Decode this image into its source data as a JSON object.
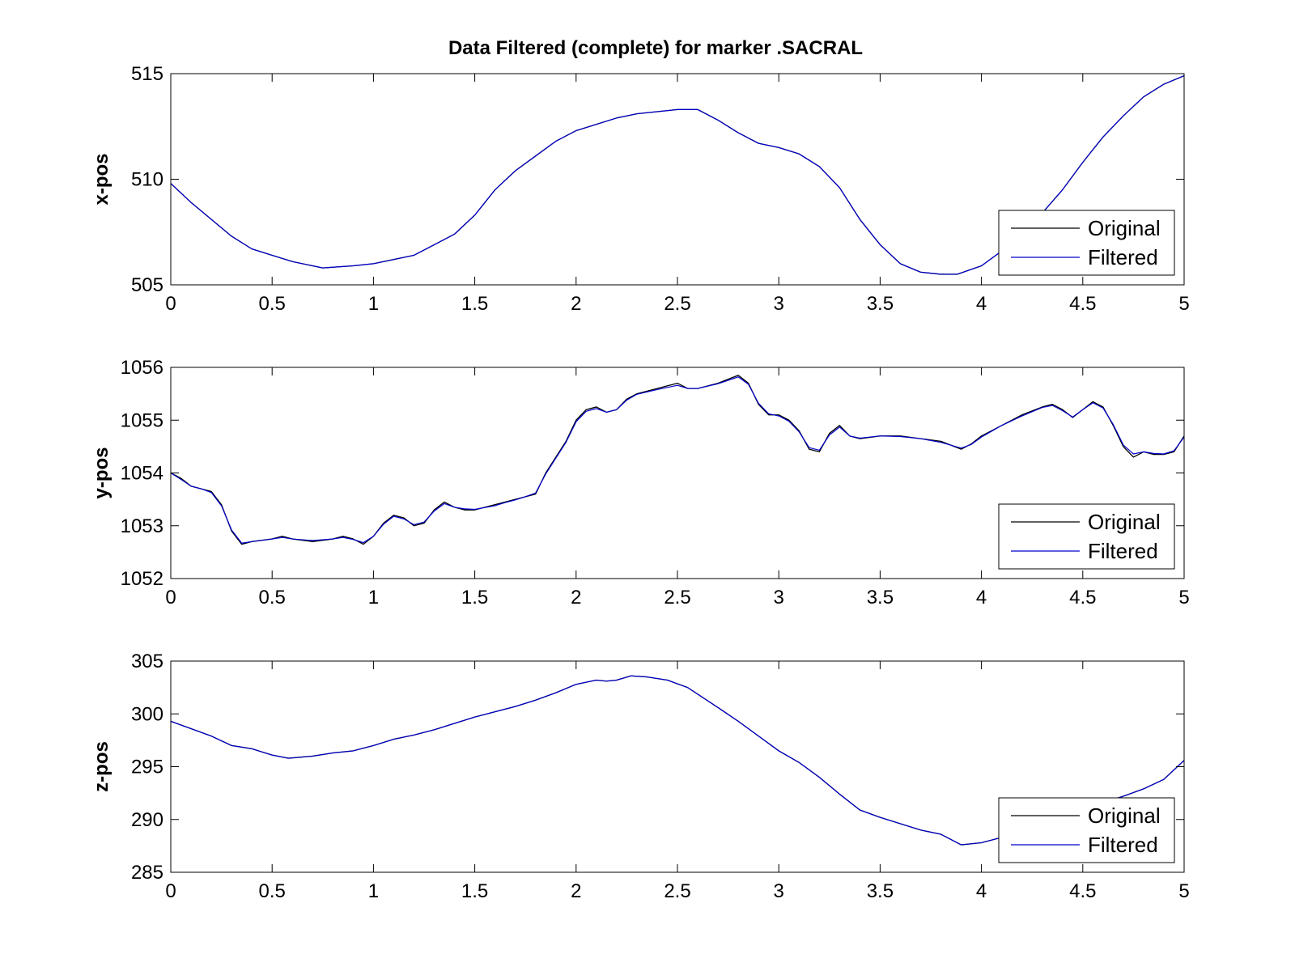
{
  "figure_title": "Data Filtered (complete) for marker .SACRAL",
  "chart_data": [
    {
      "type": "line",
      "ylabel": "x-pos",
      "xlim": [
        0,
        5
      ],
      "ylim": [
        505,
        515
      ],
      "xticks": [
        0,
        0.5,
        1,
        1.5,
        2,
        2.5,
        3,
        3.5,
        4,
        4.5,
        5
      ],
      "xtick_labels": [
        "0",
        "0.5",
        "1",
        "1.5",
        "2",
        "2.5",
        "3",
        "3.5",
        "4",
        "4.5",
        "5"
      ],
      "yticks": [
        505,
        510,
        515
      ],
      "ytick_labels": [
        "505",
        "510",
        "515"
      ],
      "legend": "bottom-right",
      "series": [
        {
          "name": "Original",
          "color": "#000000",
          "x": [
            0,
            0.1,
            0.2,
            0.3,
            0.4,
            0.5,
            0.6,
            0.75,
            0.9,
            1.0,
            1.1,
            1.2,
            1.3,
            1.4,
            1.5,
            1.6,
            1.7,
            1.8,
            1.9,
            2.0,
            2.1,
            2.2,
            2.3,
            2.4,
            2.5,
            2.6,
            2.7,
            2.8,
            2.9,
            3.0,
            3.1,
            3.2,
            3.3,
            3.4,
            3.5,
            3.6,
            3.7,
            3.8,
            3.88,
            4.0,
            4.1,
            4.2,
            4.3,
            4.4,
            4.5,
            4.6,
            4.7,
            4.8,
            4.9,
            5.0
          ],
          "y": [
            509.8,
            508.9,
            508.1,
            507.3,
            506.7,
            506.4,
            506.1,
            505.8,
            505.9,
            506.0,
            506.2,
            506.4,
            506.9,
            507.4,
            508.3,
            509.5,
            510.4,
            511.1,
            511.8,
            512.3,
            512.6,
            512.9,
            513.1,
            513.2,
            513.3,
            513.3,
            512.8,
            512.2,
            511.7,
            511.5,
            511.2,
            510.6,
            509.6,
            508.1,
            506.9,
            506.0,
            505.6,
            505.5,
            505.5,
            505.9,
            506.6,
            507.5,
            508.4,
            509.5,
            510.8,
            512.0,
            513.0,
            513.9,
            514.5,
            514.9
          ]
        },
        {
          "name": "Filtered",
          "color": "#0000cc",
          "x": [
            0,
            0.1,
            0.2,
            0.3,
            0.4,
            0.5,
            0.6,
            0.75,
            0.9,
            1.0,
            1.1,
            1.2,
            1.3,
            1.4,
            1.5,
            1.6,
            1.7,
            1.8,
            1.9,
            2.0,
            2.1,
            2.2,
            2.3,
            2.4,
            2.5,
            2.6,
            2.7,
            2.8,
            2.9,
            3.0,
            3.1,
            3.2,
            3.3,
            3.4,
            3.5,
            3.6,
            3.7,
            3.8,
            3.88,
            4.0,
            4.1,
            4.2,
            4.3,
            4.4,
            4.5,
            4.6,
            4.7,
            4.8,
            4.9,
            5.0
          ],
          "y": [
            509.8,
            508.9,
            508.1,
            507.3,
            506.7,
            506.4,
            506.1,
            505.8,
            505.9,
            506.0,
            506.2,
            506.4,
            506.9,
            507.4,
            508.3,
            509.5,
            510.4,
            511.1,
            511.8,
            512.3,
            512.6,
            512.9,
            513.1,
            513.2,
            513.3,
            513.3,
            512.8,
            512.2,
            511.7,
            511.5,
            511.2,
            510.6,
            509.6,
            508.1,
            506.9,
            506.0,
            505.6,
            505.5,
            505.5,
            505.9,
            506.6,
            507.5,
            508.4,
            509.5,
            510.8,
            512.0,
            513.0,
            513.9,
            514.5,
            514.9
          ]
        }
      ]
    },
    {
      "type": "line",
      "ylabel": "y-pos",
      "xlim": [
        0,
        5
      ],
      "ylim": [
        1052,
        1056
      ],
      "xticks": [
        0,
        0.5,
        1,
        1.5,
        2,
        2.5,
        3,
        3.5,
        4,
        4.5,
        5
      ],
      "xtick_labels": [
        "0",
        "0.5",
        "1",
        "1.5",
        "2",
        "2.5",
        "3",
        "3.5",
        "4",
        "4.5",
        "5"
      ],
      "yticks": [
        1052,
        1053,
        1054,
        1055,
        1056
      ],
      "ytick_labels": [
        "1052",
        "1053",
        "1054",
        "1055",
        "1056"
      ],
      "legend": "bottom-right",
      "series": [
        {
          "name": "Original",
          "color": "#000000",
          "x": [
            0,
            0.05,
            0.1,
            0.15,
            0.2,
            0.25,
            0.3,
            0.35,
            0.4,
            0.5,
            0.55,
            0.6,
            0.7,
            0.8,
            0.85,
            0.9,
            0.95,
            1.0,
            1.05,
            1.1,
            1.15,
            1.2,
            1.25,
            1.3,
            1.35,
            1.4,
            1.45,
            1.5,
            1.6,
            1.65,
            1.7,
            1.75,
            1.8,
            1.85,
            1.9,
            1.95,
            2.0,
            2.05,
            2.1,
            2.15,
            2.2,
            2.25,
            2.3,
            2.4,
            2.5,
            2.55,
            2.6,
            2.7,
            2.8,
            2.85,
            2.9,
            2.95,
            3.0,
            3.05,
            3.1,
            3.15,
            3.2,
            3.25,
            3.3,
            3.35,
            3.4,
            3.5,
            3.6,
            3.7,
            3.8,
            3.9,
            3.95,
            4.0,
            4.05,
            4.1,
            4.2,
            4.3,
            4.35,
            4.4,
            4.45,
            4.5,
            4.55,
            4.6,
            4.65,
            4.7,
            4.75,
            4.8,
            4.85,
            4.9,
            4.95,
            5.0
          ],
          "y": [
            1054.0,
            1053.9,
            1053.75,
            1053.7,
            1053.65,
            1053.4,
            1052.9,
            1052.65,
            1052.7,
            1052.75,
            1052.8,
            1052.75,
            1052.7,
            1052.75,
            1052.8,
            1052.75,
            1052.65,
            1052.8,
            1053.05,
            1053.2,
            1053.15,
            1053.0,
            1053.05,
            1053.3,
            1053.45,
            1053.35,
            1053.3,
            1053.3,
            1053.4,
            1053.45,
            1053.5,
            1053.55,
            1053.6,
            1054.0,
            1054.3,
            1054.6,
            1055.0,
            1055.2,
            1055.25,
            1055.15,
            1055.2,
            1055.4,
            1055.5,
            1055.6,
            1055.7,
            1055.6,
            1055.6,
            1055.7,
            1055.85,
            1055.7,
            1055.3,
            1055.1,
            1055.1,
            1055.0,
            1054.8,
            1054.45,
            1054.4,
            1054.75,
            1054.9,
            1054.7,
            1054.65,
            1054.7,
            1054.7,
            1054.65,
            1054.6,
            1054.45,
            1054.55,
            1054.7,
            1054.8,
            1054.9,
            1055.1,
            1055.25,
            1055.3,
            1055.2,
            1055.05,
            1055.2,
            1055.35,
            1055.25,
            1054.9,
            1054.5,
            1054.3,
            1054.4,
            1054.35,
            1054.35,
            1054.4,
            1054.7
          ]
        },
        {
          "name": "Filtered",
          "color": "#0000cc",
          "x": [
            0,
            0.05,
            0.1,
            0.15,
            0.2,
            0.25,
            0.3,
            0.35,
            0.4,
            0.5,
            0.55,
            0.6,
            0.7,
            0.8,
            0.85,
            0.9,
            0.95,
            1.0,
            1.05,
            1.1,
            1.15,
            1.2,
            1.25,
            1.3,
            1.35,
            1.4,
            1.45,
            1.5,
            1.6,
            1.65,
            1.7,
            1.75,
            1.8,
            1.85,
            1.9,
            1.95,
            2.0,
            2.05,
            2.1,
            2.15,
            2.2,
            2.25,
            2.3,
            2.4,
            2.5,
            2.55,
            2.6,
            2.7,
            2.8,
            2.85,
            2.9,
            2.95,
            3.0,
            3.05,
            3.1,
            3.15,
            3.2,
            3.25,
            3.3,
            3.35,
            3.4,
            3.5,
            3.6,
            3.7,
            3.8,
            3.9,
            3.95,
            4.0,
            4.05,
            4.1,
            4.2,
            4.3,
            4.35,
            4.4,
            4.45,
            4.5,
            4.55,
            4.6,
            4.65,
            4.7,
            4.75,
            4.8,
            4.85,
            4.9,
            4.95,
            5.0
          ],
          "y": [
            1054.0,
            1053.88,
            1053.75,
            1053.7,
            1053.63,
            1053.38,
            1052.92,
            1052.67,
            1052.7,
            1052.75,
            1052.78,
            1052.75,
            1052.72,
            1052.75,
            1052.78,
            1052.74,
            1052.68,
            1052.8,
            1053.03,
            1053.18,
            1053.13,
            1053.02,
            1053.07,
            1053.28,
            1053.42,
            1053.35,
            1053.32,
            1053.31,
            1053.38,
            1053.44,
            1053.49,
            1053.55,
            1053.62,
            1053.98,
            1054.28,
            1054.58,
            1054.97,
            1055.17,
            1055.22,
            1055.15,
            1055.2,
            1055.38,
            1055.49,
            1055.58,
            1055.66,
            1055.6,
            1055.6,
            1055.69,
            1055.82,
            1055.68,
            1055.32,
            1055.12,
            1055.08,
            1054.98,
            1054.78,
            1054.48,
            1054.43,
            1054.72,
            1054.87,
            1054.7,
            1054.66,
            1054.7,
            1054.69,
            1054.65,
            1054.58,
            1054.47,
            1054.54,
            1054.68,
            1054.79,
            1054.9,
            1055.08,
            1055.24,
            1055.28,
            1055.18,
            1055.06,
            1055.2,
            1055.33,
            1055.23,
            1054.92,
            1054.53,
            1054.36,
            1054.4,
            1054.37,
            1054.36,
            1054.42,
            1054.68
          ]
        }
      ]
    },
    {
      "type": "line",
      "ylabel": "z-pos",
      "xlim": [
        0,
        5
      ],
      "ylim": [
        285,
        305
      ],
      "xticks": [
        0,
        0.5,
        1,
        1.5,
        2,
        2.5,
        3,
        3.5,
        4,
        4.5,
        5
      ],
      "xtick_labels": [
        "0",
        "0.5",
        "1",
        "1.5",
        "2",
        "2.5",
        "3",
        "3.5",
        "4",
        "4.5",
        "5"
      ],
      "yticks": [
        285,
        290,
        295,
        300,
        305
      ],
      "ytick_labels": [
        "285",
        "290",
        "295",
        "300",
        "305"
      ],
      "legend": "bottom-right",
      "series": [
        {
          "name": "Original",
          "color": "#000000",
          "x": [
            0,
            0.1,
            0.2,
            0.3,
            0.4,
            0.5,
            0.58,
            0.7,
            0.8,
            0.9,
            1.0,
            1.1,
            1.2,
            1.3,
            1.4,
            1.5,
            1.6,
            1.7,
            1.8,
            1.9,
            2.0,
            2.1,
            2.15,
            2.2,
            2.27,
            2.35,
            2.45,
            2.55,
            2.7,
            2.8,
            2.9,
            3.0,
            3.1,
            3.2,
            3.3,
            3.4,
            3.5,
            3.6,
            3.7,
            3.8,
            3.9,
            4.0,
            4.1,
            4.2,
            4.3,
            4.4,
            4.5,
            4.6,
            4.7,
            4.8,
            4.9,
            5.0
          ],
          "y": [
            299.3,
            298.6,
            297.9,
            297.0,
            296.7,
            296.1,
            295.8,
            296.0,
            296.3,
            296.5,
            297.0,
            297.6,
            298.0,
            298.5,
            299.1,
            299.7,
            300.2,
            300.7,
            301.3,
            302.0,
            302.8,
            303.2,
            303.1,
            303.2,
            303.6,
            303.5,
            303.2,
            302.5,
            300.6,
            299.3,
            297.9,
            296.5,
            295.4,
            294.0,
            292.4,
            290.9,
            290.2,
            289.6,
            289.0,
            288.6,
            287.6,
            287.8,
            288.3,
            288.8,
            289.5,
            290.3,
            291.0,
            291.6,
            292.2,
            292.9,
            293.8,
            295.6
          ]
        },
        {
          "name": "Filtered",
          "color": "#0000cc",
          "x": [
            0,
            0.1,
            0.2,
            0.3,
            0.4,
            0.5,
            0.58,
            0.7,
            0.8,
            0.9,
            1.0,
            1.1,
            1.2,
            1.3,
            1.4,
            1.5,
            1.6,
            1.7,
            1.8,
            1.9,
            2.0,
            2.1,
            2.15,
            2.2,
            2.27,
            2.35,
            2.45,
            2.55,
            2.7,
            2.8,
            2.9,
            3.0,
            3.1,
            3.2,
            3.3,
            3.4,
            3.5,
            3.6,
            3.7,
            3.8,
            3.9,
            4.0,
            4.1,
            4.2,
            4.3,
            4.4,
            4.5,
            4.6,
            4.7,
            4.8,
            4.9,
            5.0
          ],
          "y": [
            299.3,
            298.6,
            297.9,
            297.0,
            296.7,
            296.1,
            295.8,
            296.0,
            296.3,
            296.5,
            297.0,
            297.6,
            298.0,
            298.5,
            299.1,
            299.7,
            300.2,
            300.7,
            301.3,
            302.0,
            302.8,
            303.2,
            303.1,
            303.2,
            303.6,
            303.5,
            303.2,
            302.5,
            300.6,
            299.3,
            297.9,
            296.5,
            295.4,
            294.0,
            292.4,
            290.9,
            290.2,
            289.6,
            289.0,
            288.6,
            287.6,
            287.8,
            288.3,
            288.8,
            289.5,
            290.3,
            291.0,
            291.6,
            292.2,
            292.9,
            293.8,
            295.6
          ]
        }
      ]
    }
  ]
}
